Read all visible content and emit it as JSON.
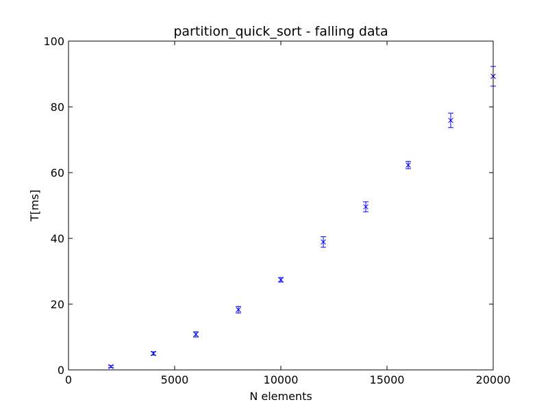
{
  "chart_data": {
    "type": "scatter",
    "title": "partition_quick_sort - falling data",
    "xlabel": "N elements",
    "ylabel": "T[ms]",
    "xlim": [
      0,
      20000
    ],
    "ylim": [
      0,
      100
    ],
    "xticks": [
      0,
      5000,
      10000,
      15000,
      20000
    ],
    "yticks": [
      0,
      20,
      40,
      60,
      80,
      100
    ],
    "grid": false,
    "legend": false,
    "marker": "x",
    "color": "#0000ff",
    "series": [
      {
        "x": [
          2000,
          4000,
          6000,
          8000,
          10000,
          12000,
          14000,
          16000,
          18000,
          20000
        ],
        "y": [
          1.0,
          5.0,
          10.8,
          18.3,
          27.4,
          38.9,
          49.6,
          62.3,
          75.9,
          89.3
        ],
        "error": [
          0.3,
          0.5,
          0.8,
          1.0,
          0.7,
          1.6,
          1.5,
          1.1,
          2.2,
          3.0
        ]
      }
    ]
  }
}
